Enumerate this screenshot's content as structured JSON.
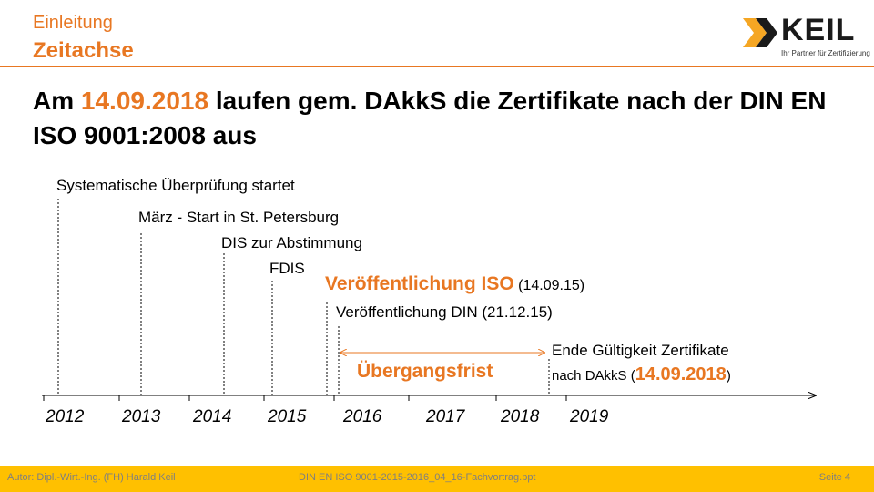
{
  "header": {
    "section": "Einleitung",
    "subsection": "Zeitachse"
  },
  "logo": {
    "wordmark": "KEIL",
    "tagline": "Ihr Partner für Zertifizierung",
    "accent_color": "#F5A623"
  },
  "headline": {
    "part1": "Am ",
    "date": "14.09.2018",
    "part2": " laufen gem. DAkkS die Zertifikate nach der DIN EN ISO 9001:2008 aus"
  },
  "timeline": {
    "years": [
      "2012",
      "2013",
      "2014",
      "2015",
      "2016",
      "2017",
      "2018",
      "2019"
    ],
    "events": {
      "review": "Systematische Überprüfung  startet",
      "march_start": "März - Start in St. Petersburg",
      "dis": "DIS zur Abstimmung",
      "fdis": "FDIS",
      "iso_pub": "Veröffentlichung ISO",
      "iso_pub_date": " (14.09.15)",
      "din_pub": "Veröffentlichung  DIN",
      "din_pub_date": " (21.12.15)",
      "end_validity": "Ende Gültigkeit Zertifikate",
      "end_validity_prefix": "nach DAkkS (",
      "end_validity_date": "14.09.2018",
      "end_validity_suffix": ")"
    },
    "transition_label": "Übergangsfrist",
    "accent_color": "#E87722"
  },
  "footer": {
    "author": "Autor: Dipl.-Wirt.-Ing. (FH) Harald  Keil",
    "file": "DIN EN ISO 9001-2015-2016_04_16-Fachvortrag.ppt",
    "page": "Seite 4"
  }
}
